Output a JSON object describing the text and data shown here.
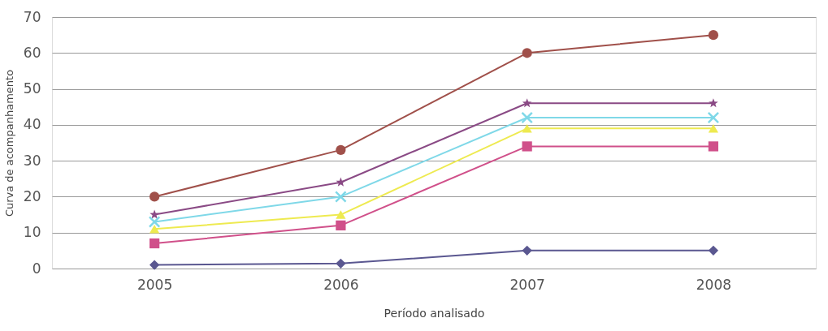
{
  "chart_data": {
    "type": "line",
    "xlabel": "Período analisado",
    "ylabel": "Curva de acompanhamento",
    "categories": [
      "2005",
      "2006",
      "2007",
      "2008"
    ],
    "series": [
      {
        "color": "#a0504a",
        "marker": "circle",
        "values": [
          20,
          33,
          60,
          65
        ]
      },
      {
        "color": "#8a4a85",
        "marker": "star",
        "values": [
          15,
          24,
          46,
          46
        ]
      },
      {
        "color": "#7fd8e8",
        "marker": "cross",
        "values": [
          13,
          20,
          42,
          42
        ]
      },
      {
        "color": "#eeea50",
        "marker": "triangle",
        "values": [
          11,
          15,
          39,
          39
        ]
      },
      {
        "color": "#d0508a",
        "marker": "square",
        "values": [
          7,
          12,
          34,
          34
        ]
      },
      {
        "color": "#5a5790",
        "marker": "diamond",
        "values": [
          1,
          1.4,
          5,
          5
        ]
      }
    ],
    "ylim": [
      0,
      70
    ],
    "yticks": [
      0,
      10,
      20,
      30,
      40,
      50,
      60,
      70
    ],
    "grid": "y",
    "legend": false,
    "line_style": "solid"
  }
}
